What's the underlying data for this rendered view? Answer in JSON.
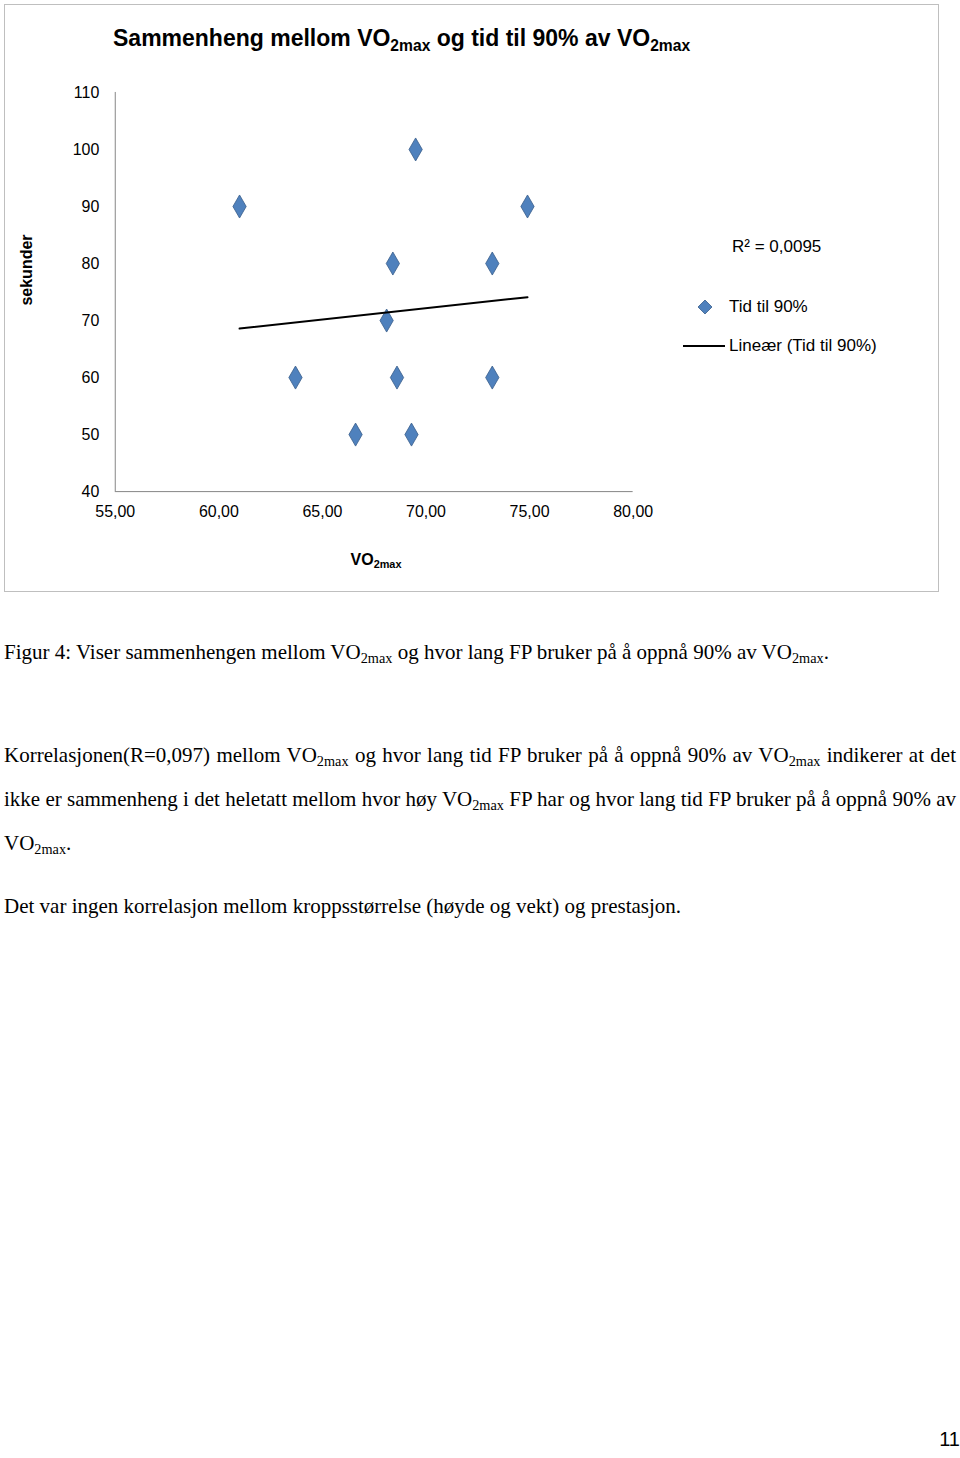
{
  "chart_data": {
    "type": "scatter",
    "title": "Sammenheng mellom VO2max og tid til 90% av VO2max",
    "x_label": "VO2max",
    "y_label": "sekunder",
    "xlim": [
      55,
      80
    ],
    "xticks": [
      {
        "value": 55,
        "label": "55,00"
      },
      {
        "value": 60,
        "label": "60,00"
      },
      {
        "value": 65,
        "label": "65,00"
      },
      {
        "value": 70,
        "label": "70,00"
      },
      {
        "value": 75,
        "label": "75,00"
      },
      {
        "value": 80,
        "label": "80,00"
      }
    ],
    "ylim": [
      40,
      110
    ],
    "yticks": [
      40,
      50,
      60,
      70,
      80,
      90,
      100,
      110
    ],
    "grid": false,
    "legend": "right",
    "annotations": [
      "R² = 0,0095"
    ],
    "series": [
      {
        "name": "Tid til 90%",
        "type": "scatter",
        "marker": "diamond",
        "color": "#4f81bd",
        "x": [
          61.0,
          69.5,
          74.9,
          68.4,
          73.2,
          68.1,
          63.7,
          68.6,
          73.2,
          66.6,
          69.3
        ],
        "values": [
          90,
          100,
          90,
          80,
          80,
          70,
          60,
          60,
          60,
          50,
          50
        ]
      },
      {
        "name": "Lineær (Tid til 90%)",
        "type": "line",
        "color": "#000000",
        "x": [
          61.0,
          74.9
        ],
        "values": [
          68.6,
          74.1
        ]
      }
    ]
  },
  "document": {
    "caption": "Figur 4: Viser sammenhengen mellom VO2max og hvor lang FP bruker på å oppnå 90% av VO2max.",
    "paragraphs": [
      "Korrelasjonen(R=0,097) mellom VO2max og hvor lang tid FP bruker på å oppnå 90% av VO2max indikerer at det ikke er sammenheng i det heletatt mellom hvor høy VO2max FP har og hvor lang tid FP bruker på å oppnå 90% av VO2max.",
      "Det var ingen korrelasjon mellom kroppsstørrelse (høyde og vekt) og prestasjon."
    ],
    "page_number": "11"
  }
}
